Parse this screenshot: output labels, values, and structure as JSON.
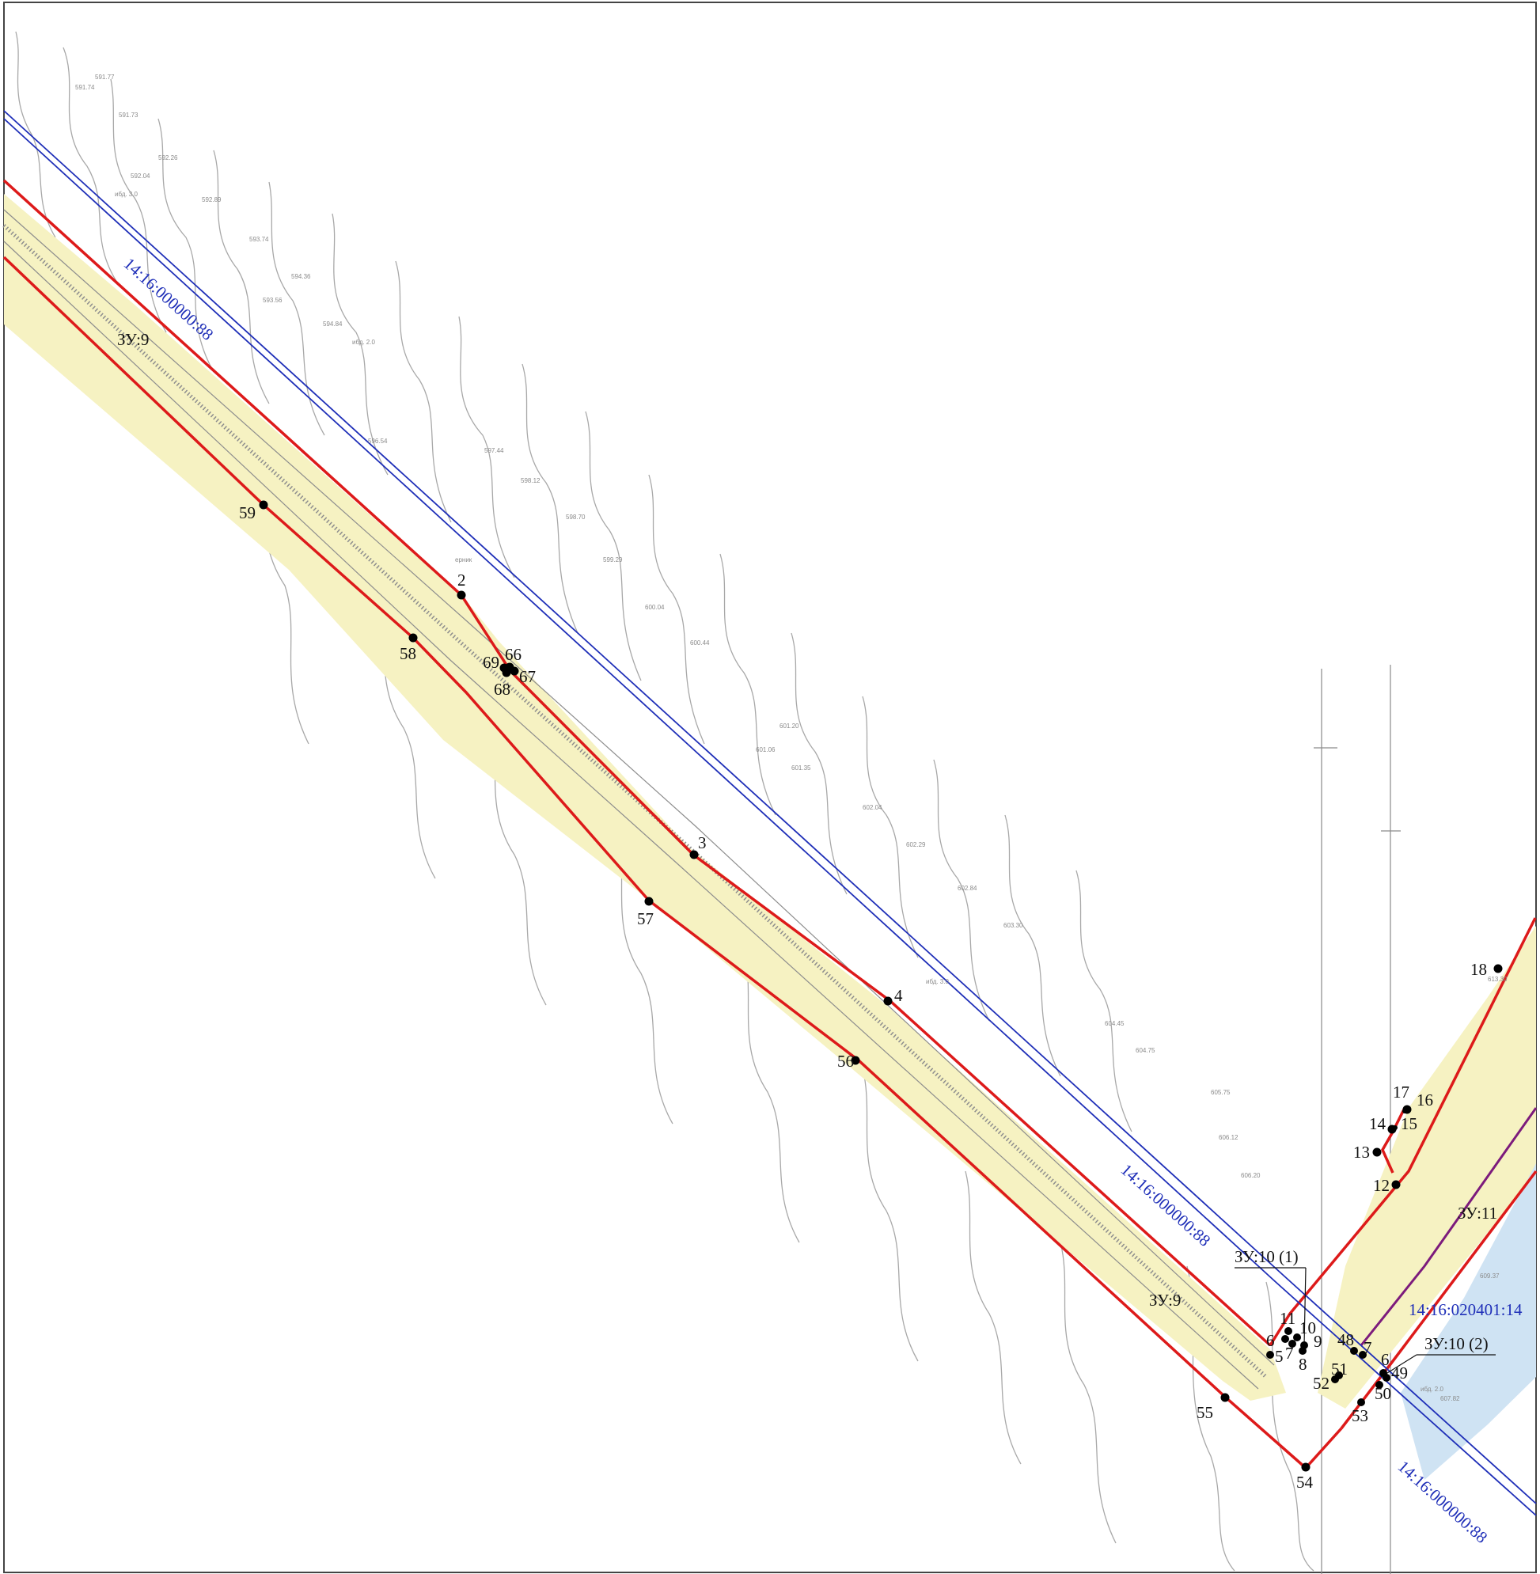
{
  "colors": {
    "boundary": "#dd1a1a",
    "cadastral": "#1f2fb8",
    "corridor_fill": "#f6f2c2",
    "water_fill": "#cfe3f3",
    "contour": "#a8a8a8",
    "ditch": "#7c1b7c",
    "point": "#000000"
  },
  "cadastral_labels": [
    "14:16:000000:88",
    "14:16:000000:88",
    "14:16:000000:88",
    "14:16:020401:14"
  ],
  "zones": [
    "ЗУ:9",
    "ЗУ:9",
    "ЗУ:10 (1)",
    "ЗУ:10 (2)",
    "ЗУ:11"
  ],
  "points": {
    "main": [
      "2",
      "3",
      "4",
      "55",
      "56",
      "57",
      "58",
      "59",
      "66",
      "67",
      "68",
      "69",
      "54"
    ],
    "junction_a": [
      "11",
      "10",
      "9",
      "8",
      "7",
      "6",
      "5"
    ],
    "junction_b": [
      "48",
      "7",
      "6",
      "49",
      "50",
      "51",
      "52",
      "53"
    ],
    "east": [
      "12",
      "13",
      "14",
      "15",
      "16",
      "17",
      "18"
    ]
  },
  "elevation_samples": [
    "591.77",
    "591.74",
    "591.73",
    "592.26",
    "592.04",
    "592.89",
    "593.74",
    "594.36",
    "593.56",
    "594.84",
    "596.54",
    "597.44",
    "598.12",
    "598.70",
    "599.29",
    "600.04",
    "600.44",
    "601.06",
    "601.20",
    "601.35",
    "602.04",
    "602.29",
    "602.84",
    "603.30",
    "604.45",
    "604.75",
    "605.75",
    "606.12",
    "606.20",
    "607.82",
    "609.37",
    "613.30"
  ],
  "survey_notes": [
    "ибд. 3.0",
    "ибд. 2.0",
    "ерник",
    "ибд. 3.0",
    "ибд. 2.0"
  ]
}
